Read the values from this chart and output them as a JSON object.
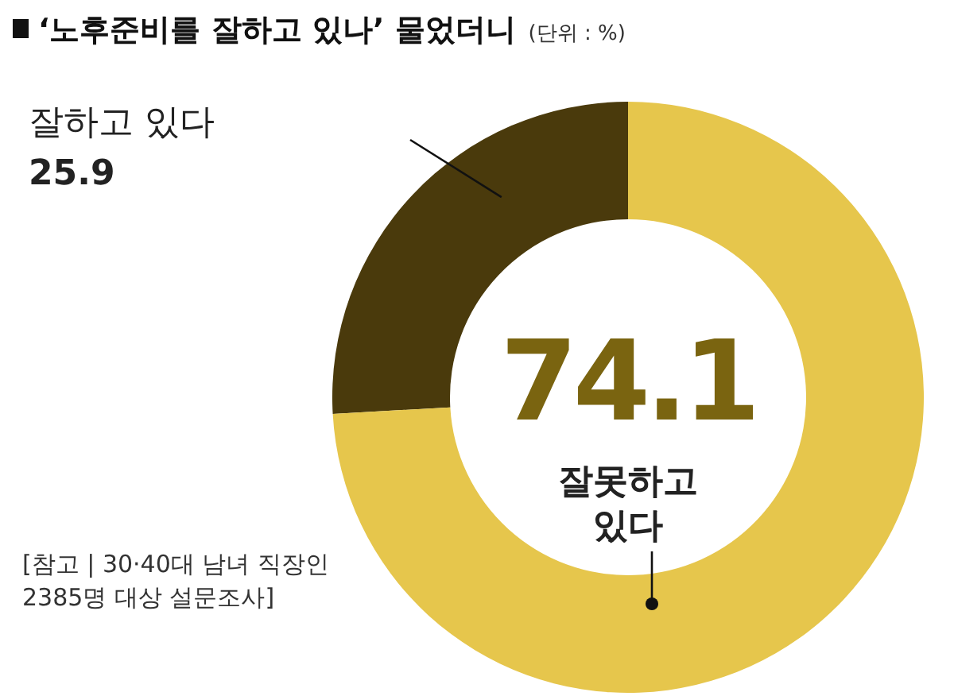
{
  "chart_data": {
    "type": "donut",
    "title": "‘노후준비를 잘하고 있나’ 물었더니",
    "subtitle": "(단위 : %)",
    "categories": [
      "잘하고 있다",
      "잘못하고 있다"
    ],
    "values": [
      25.9,
      74.1
    ],
    "colors": [
      "#4a3a0c",
      "#e6c64c"
    ],
    "data_labels": true,
    "annotations": [
      "[참고 | 30·40대 남녀 직장인 2385명 대상 설문조사]"
    ]
  }
}
